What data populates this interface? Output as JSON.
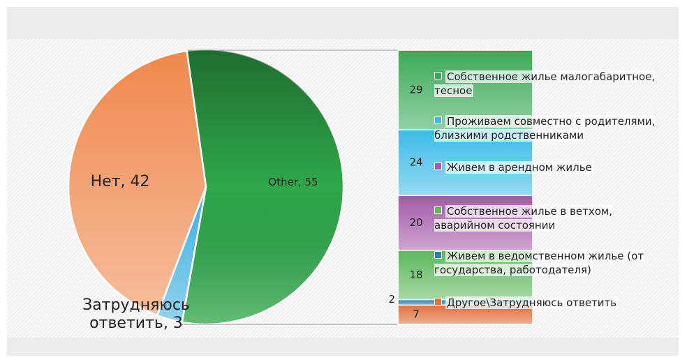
{
  "chart_data": [
    {
      "type": "pie",
      "categories": [
        "Other",
        "Затрудняюсь ответить",
        "Нет"
      ],
      "values": [
        55,
        3,
        42
      ],
      "value_labels": [
        "Other, 55",
        "Затрудняюсь ответить, 3",
        "Нет, 42"
      ],
      "colors": [
        "#2fa84a",
        "#37aee0",
        "#f0884c"
      ]
    },
    {
      "type": "bar",
      "categories": [
        "Собственное жилье малогабаритное, тесное",
        "Проживаем совместно с родителями, близкими родственниками",
        "Живем в арендном жилье",
        "Собственное жилье в ветхом, аварийном состоянии",
        "Живем в ведомственном жилье (от государства, работодателя)",
        "Другое\\Затрудняюсь ответить"
      ],
      "values": [
        29,
        24,
        20,
        18,
        2,
        7
      ],
      "colors": [
        "#3aaa58",
        "#3cbbe8",
        "#a45aa8",
        "#5cb85c",
        "#2a7fb0",
        "#e0703c"
      ]
    }
  ]
}
